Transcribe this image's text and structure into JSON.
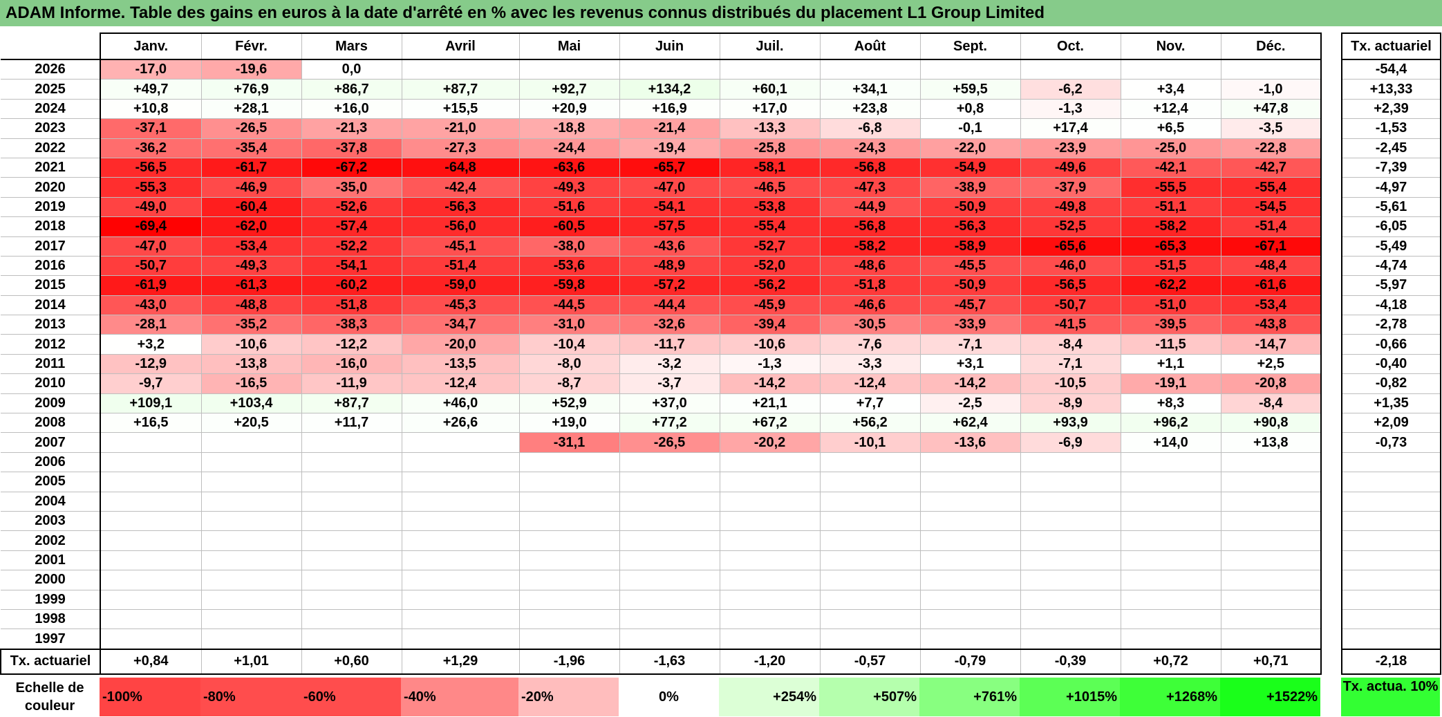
{
  "title": "ADAM Informe. Table des gains en euros à la date d'arrêté en % avec les revenus connus distribués du placement L1 Group Limited",
  "chart_data": {
    "type": "table",
    "months": [
      "Janv.",
      "Févr.",
      "Mars",
      "Avril",
      "Mai",
      "Juin",
      "Juil.",
      "Août",
      "Sept.",
      "Oct.",
      "Nov.",
      "Déc."
    ],
    "side_header": "Tx. actuariel",
    "rows": [
      {
        "year": "2026",
        "values": [
          "-17,0",
          "-19,6",
          "0,0",
          "",
          "",
          "",
          "",
          "",
          "",
          "",
          "",
          ""
        ],
        "actuarial": "-54,4"
      },
      {
        "year": "2025",
        "values": [
          "+49,7",
          "+76,9",
          "+86,7",
          "+87,7",
          "+92,7",
          "+134,2",
          "+60,1",
          "+34,1",
          "+59,5",
          "-6,2",
          "+3,4",
          "-1,0"
        ],
        "actuarial": "+13,33"
      },
      {
        "year": "2024",
        "values": [
          "+10,8",
          "+28,1",
          "+16,0",
          "+15,5",
          "+20,9",
          "+16,9",
          "+17,0",
          "+23,8",
          "+0,8",
          "-1,3",
          "+12,4",
          "+47,8"
        ],
        "actuarial": "+2,39"
      },
      {
        "year": "2023",
        "values": [
          "-37,1",
          "-26,5",
          "-21,3",
          "-21,0",
          "-18,8",
          "-21,4",
          "-13,3",
          "-6,8",
          "-0,1",
          "+17,4",
          "+6,5",
          "-3,5"
        ],
        "actuarial": "-1,53"
      },
      {
        "year": "2022",
        "values": [
          "-36,2",
          "-35,4",
          "-37,8",
          "-27,3",
          "-24,4",
          "-19,4",
          "-25,8",
          "-24,3",
          "-22,0",
          "-23,9",
          "-25,0",
          "-22,8"
        ],
        "actuarial": "-2,45"
      },
      {
        "year": "2021",
        "values": [
          "-56,5",
          "-61,7",
          "-67,2",
          "-64,8",
          "-63,6",
          "-65,7",
          "-58,1",
          "-56,8",
          "-54,9",
          "-49,6",
          "-42,1",
          "-42,7"
        ],
        "actuarial": "-7,39"
      },
      {
        "year": "2020",
        "values": [
          "-55,3",
          "-46,9",
          "-35,0",
          "-42,4",
          "-49,3",
          "-47,0",
          "-46,5",
          "-47,3",
          "-38,9",
          "-37,9",
          "-55,5",
          "-55,4"
        ],
        "actuarial": "-4,97"
      },
      {
        "year": "2019",
        "values": [
          "-49,0",
          "-60,4",
          "-52,6",
          "-56,3",
          "-51,6",
          "-54,1",
          "-53,8",
          "-44,9",
          "-50,9",
          "-49,8",
          "-51,1",
          "-54,5"
        ],
        "actuarial": "-5,61"
      },
      {
        "year": "2018",
        "values": [
          "-69,4",
          "-62,0",
          "-57,4",
          "-56,0",
          "-60,5",
          "-57,5",
          "-55,4",
          "-56,8",
          "-56,3",
          "-52,5",
          "-58,2",
          "-51,4"
        ],
        "actuarial": "-6,05"
      },
      {
        "year": "2017",
        "values": [
          "-47,0",
          "-53,4",
          "-52,2",
          "-45,1",
          "-38,0",
          "-43,6",
          "-52,7",
          "-58,2",
          "-58,9",
          "-65,6",
          "-65,3",
          "-67,1"
        ],
        "actuarial": "-5,49"
      },
      {
        "year": "2016",
        "values": [
          "-50,7",
          "-49,3",
          "-54,1",
          "-51,4",
          "-53,6",
          "-48,9",
          "-52,0",
          "-48,6",
          "-45,5",
          "-46,0",
          "-51,5",
          "-48,4"
        ],
        "actuarial": "-4,74"
      },
      {
        "year": "2015",
        "values": [
          "-61,9",
          "-61,3",
          "-60,2",
          "-59,0",
          "-59,8",
          "-57,2",
          "-56,2",
          "-51,8",
          "-50,9",
          "-56,5",
          "-62,2",
          "-61,6"
        ],
        "actuarial": "-5,97"
      },
      {
        "year": "2014",
        "values": [
          "-43,0",
          "-48,8",
          "-51,8",
          "-45,3",
          "-44,5",
          "-44,4",
          "-45,9",
          "-46,6",
          "-45,7",
          "-50,7",
          "-51,0",
          "-53,4"
        ],
        "actuarial": "-4,18"
      },
      {
        "year": "2013",
        "values": [
          "-28,1",
          "-35,2",
          "-38,3",
          "-34,7",
          "-31,0",
          "-32,6",
          "-39,4",
          "-30,5",
          "-33,9",
          "-41,5",
          "-39,5",
          "-43,8"
        ],
        "actuarial": "-2,78"
      },
      {
        "year": "2012",
        "values": [
          "+3,2",
          "-10,6",
          "-12,2",
          "-20,0",
          "-10,4",
          "-11,7",
          "-10,6",
          "-7,6",
          "-7,1",
          "-8,4",
          "-11,5",
          "-14,7"
        ],
        "actuarial": "-0,66"
      },
      {
        "year": "2011",
        "values": [
          "-12,9",
          "-13,8",
          "-16,0",
          "-13,5",
          "-8,0",
          "-3,2",
          "-1,3",
          "-3,3",
          "+3,1",
          "-7,1",
          "+1,1",
          "+2,5"
        ],
        "actuarial": "-0,40"
      },
      {
        "year": "2010",
        "values": [
          "-9,7",
          "-16,5",
          "-11,9",
          "-12,4",
          "-8,7",
          "-3,7",
          "-14,2",
          "-12,4",
          "-14,2",
          "-10,5",
          "-19,1",
          "-20,8"
        ],
        "actuarial": "-0,82"
      },
      {
        "year": "2009",
        "values": [
          "+109,1",
          "+103,4",
          "+87,7",
          "+46,0",
          "+52,9",
          "+37,0",
          "+21,1",
          "+7,7",
          "-2,5",
          "-8,9",
          "+8,3",
          "-8,4"
        ],
        "actuarial": "+1,35"
      },
      {
        "year": "2008",
        "values": [
          "+16,5",
          "+20,5",
          "+11,7",
          "+26,6",
          "+19,0",
          "+77,2",
          "+67,2",
          "+56,2",
          "+62,4",
          "+93,9",
          "+96,2",
          "+90,8"
        ],
        "actuarial": "+2,09"
      },
      {
        "year": "2007",
        "values": [
          "",
          "",
          "",
          "",
          "-31,1",
          "-26,5",
          "-20,2",
          "-10,1",
          "-13,6",
          "-6,9",
          "+14,0",
          "+13,8"
        ],
        "actuarial": "-0,73"
      },
      {
        "year": "2006",
        "values": [
          "",
          "",
          "",
          "",
          "",
          "",
          "",
          "",
          "",
          "",
          "",
          ""
        ],
        "actuarial": ""
      },
      {
        "year": "2005",
        "values": [
          "",
          "",
          "",
          "",
          "",
          "",
          "",
          "",
          "",
          "",
          "",
          ""
        ],
        "actuarial": ""
      },
      {
        "year": "2004",
        "values": [
          "",
          "",
          "",
          "",
          "",
          "",
          "",
          "",
          "",
          "",
          "",
          ""
        ],
        "actuarial": ""
      },
      {
        "year": "2003",
        "values": [
          "",
          "",
          "",
          "",
          "",
          "",
          "",
          "",
          "",
          "",
          "",
          ""
        ],
        "actuarial": ""
      },
      {
        "year": "2002",
        "values": [
          "",
          "",
          "",
          "",
          "",
          "",
          "",
          "",
          "",
          "",
          "",
          ""
        ],
        "actuarial": ""
      },
      {
        "year": "2001",
        "values": [
          "",
          "",
          "",
          "",
          "",
          "",
          "",
          "",
          "",
          "",
          "",
          ""
        ],
        "actuarial": ""
      },
      {
        "year": "2000",
        "values": [
          "",
          "",
          "",
          "",
          "",
          "",
          "",
          "",
          "",
          "",
          "",
          ""
        ],
        "actuarial": ""
      },
      {
        "year": "1999",
        "values": [
          "",
          "",
          "",
          "",
          "",
          "",
          "",
          "",
          "",
          "",
          "",
          ""
        ],
        "actuarial": ""
      },
      {
        "year": "1998",
        "values": [
          "",
          "",
          "",
          "",
          "",
          "",
          "",
          "",
          "",
          "",
          "",
          ""
        ],
        "actuarial": ""
      },
      {
        "year": "1997",
        "values": [
          "",
          "",
          "",
          "",
          "",
          "",
          "",
          "",
          "",
          "",
          "",
          ""
        ],
        "actuarial": ""
      }
    ],
    "annual_row": {
      "label": "Tx. actuariel",
      "values": [
        "+0,84",
        "+1,01",
        "+0,60",
        "+1,29",
        "-1,96",
        "-1,63",
        "-1,20",
        "-0,57",
        "-0,79",
        "-0,39",
        "+0,72",
        "+0,71"
      ],
      "total": "-2,18"
    },
    "color_scale": {
      "label": "Echelle de couleur",
      "steps": [
        {
          "text": "-100%",
          "color": "#ff4444",
          "align": "left"
        },
        {
          "text": "-80%",
          "color": "#ff4d4d",
          "align": "left"
        },
        {
          "text": "-60%",
          "color": "#ff4d4d",
          "align": "left"
        },
        {
          "text": "-40%",
          "color": "#ff8888",
          "align": "left"
        },
        {
          "text": "-20%",
          "color": "#ffbdbd",
          "align": "left"
        },
        {
          "text": "0%",
          "color": "#ffffff",
          "align": "center"
        },
        {
          "text": "+254%",
          "color": "#dcffd6",
          "align": "right"
        },
        {
          "text": "+507%",
          "color": "#b5ffad",
          "align": "right"
        },
        {
          "text": "+761%",
          "color": "#88ff80",
          "align": "right"
        },
        {
          "text": "+1015%",
          "color": "#5cff55",
          "align": "right"
        },
        {
          "text": "+1268%",
          "color": "#3eff38",
          "align": "right"
        },
        {
          "text": "+1522%",
          "color": "#1aff1a",
          "align": "right"
        }
      ],
      "side_text": "Tx. actua. 10%",
      "side_color": "#33ff33"
    }
  }
}
